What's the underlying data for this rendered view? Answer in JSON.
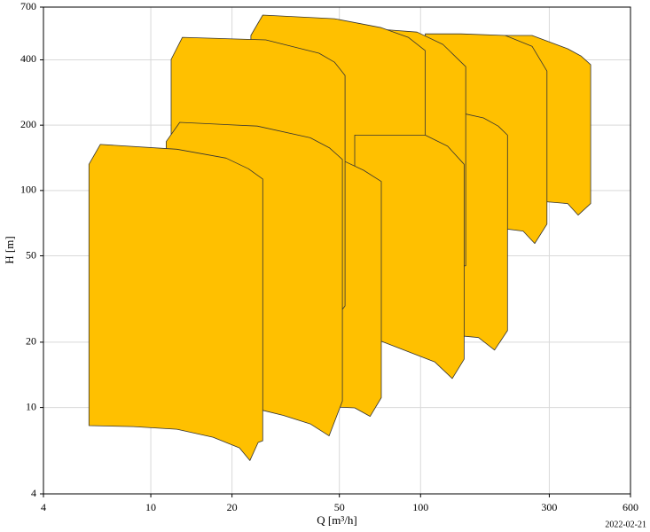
{
  "chart_data": {
    "type": "region",
    "xlabel": "Q [m³/h]",
    "ylabel": "H [m]",
    "footer": "2022-02-21",
    "xscale": "log",
    "yscale": "log",
    "grid": true,
    "color": "#ffc000",
    "edgecolor": "#333333",
    "xlim": [
      4,
      600
    ],
    "ylim": [
      4,
      700
    ],
    "xticks": [
      4,
      10,
      20,
      50,
      100,
      300,
      600
    ],
    "yticks": [
      4,
      10,
      20,
      50,
      100,
      200,
      400,
      700
    ],
    "series": [
      {
        "x": [
          206,
          259,
          351,
          393,
          427,
          427,
          384,
          351,
          206
        ],
        "y": [
          518,
          518,
          450,
          417,
          380,
          87,
          77,
          87,
          92
        ]
      },
      {
        "x": [
          104,
          141,
          206,
          259,
          294,
          294,
          265,
          240,
          164,
          104
        ],
        "y": [
          527,
          527,
          518,
          462,
          355,
          70,
          57,
          65,
          69,
          69
        ]
      },
      {
        "x": [
          104,
          145,
          171,
          194,
          210,
          210,
          188,
          164,
          104
        ],
        "y": [
          226,
          226,
          216,
          198,
          180,
          22.6,
          18.4,
          21,
          22.2
        ]
      },
      {
        "x": [
          71.5,
          97,
          121,
          147,
          147,
          71.5
        ],
        "y": [
          553,
          537,
          471,
          372,
          45,
          41
        ]
      },
      {
        "x": [
          23.5,
          26,
          48,
          71.5,
          90,
          104,
          104,
          94,
          77,
          57,
          23.5
        ],
        "y": [
          518,
          643,
          619,
          563,
          508,
          441,
          38,
          30.5,
          34,
          37,
          41
        ]
      },
      {
        "x": [
          57,
          104,
          126,
          145,
          145,
          131,
          113,
          71.5,
          57
        ],
        "y": [
          180,
          180,
          160,
          132,
          16.7,
          13.6,
          16.2,
          20.2,
          21
        ]
      },
      {
        "x": [
          26.7,
          52.5,
          61.5,
          71.5,
          71.5,
          65,
          57,
          26.7
        ],
        "y": [
          136,
          136,
          124,
          110,
          11.1,
          9.1,
          9.96,
          10.4
        ]
      },
      {
        "x": [
          11.9,
          13.1,
          26.7,
          42,
          48,
          52.5,
          52.5,
          50.9,
          11.9
        ],
        "y": [
          402,
          508,
          494,
          429,
          390,
          339,
          29.4,
          28,
          34
        ]
      },
      {
        "x": [
          11.4,
          12.8,
          24.8,
          39,
          46,
          51.3,
          51.3,
          45.8,
          39,
          31,
          26,
          11.4
        ],
        "y": [
          168,
          206,
          198,
          175,
          157,
          139,
          10.7,
          7.4,
          8.4,
          9.2,
          9.7,
          10.4
        ]
      },
      {
        "x": [
          5.9,
          6.5,
          12.5,
          19,
          23,
          26,
          26,
          25,
          23.3,
          21.3,
          17,
          12.5,
          8.6,
          5.9
        ],
        "y": [
          132,
          163,
          155,
          141,
          126,
          113,
          7.03,
          6.9,
          5.7,
          6.52,
          7.3,
          7.94,
          8.17,
          8.25
        ]
      }
    ]
  }
}
